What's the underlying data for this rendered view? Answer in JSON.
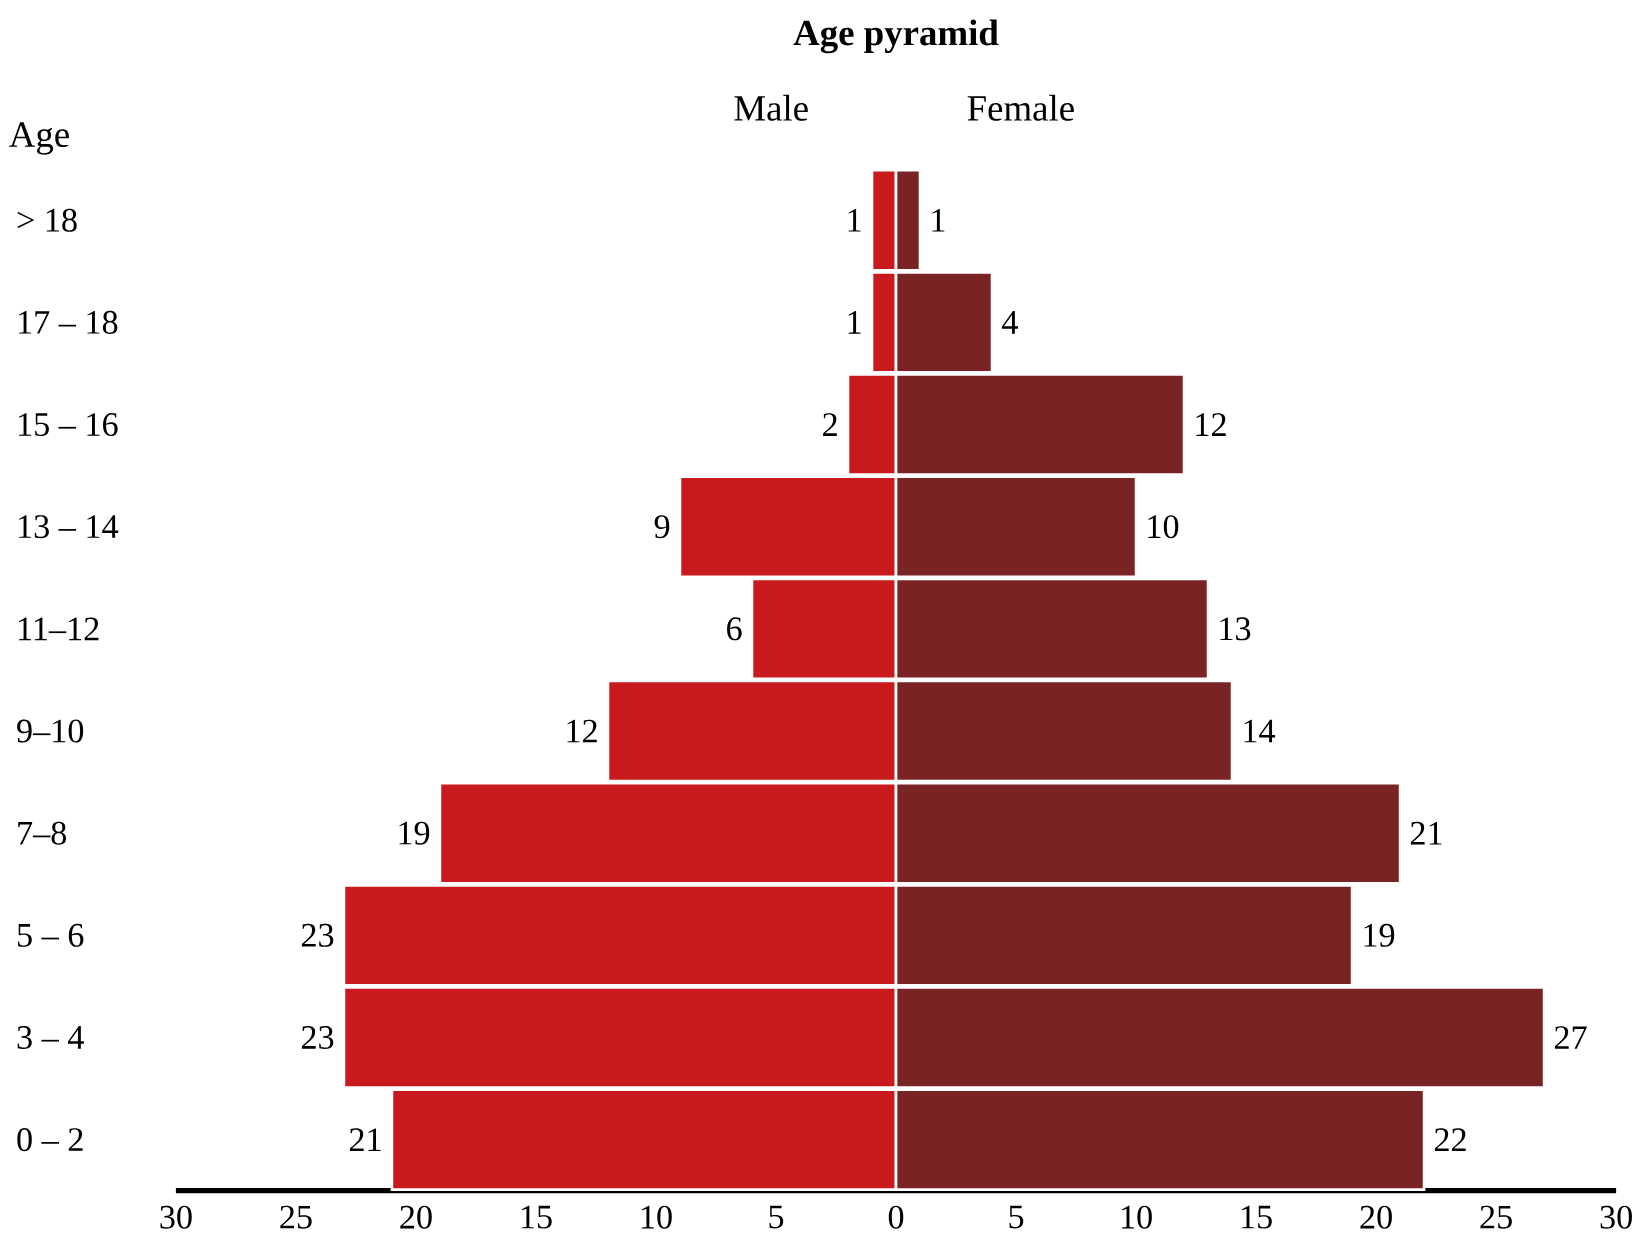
{
  "chart_data": [
    {
      "type": "bar",
      "orientation": "horizontal",
      "title": "Age pyramid",
      "ylabel": "Age",
      "categories": [
        "> 18",
        "17 – 18",
        "15 – 16",
        "13 – 14",
        "11–12",
        "9–10",
        "7–8",
        "5 – 6",
        "3 – 4",
        "0 – 2"
      ],
      "series": [
        {
          "name": "Male",
          "color": "#c8191c",
          "values": [
            1,
            1,
            2,
            9,
            6,
            12,
            19,
            23,
            23,
            21
          ]
        }
      ],
      "xlim": [
        30,
        0
      ],
      "xticks": [
        30,
        25,
        20,
        15,
        10,
        5
      ],
      "data_labels": true
    },
    {
      "type": "bar",
      "orientation": "horizontal",
      "tick_labels": "x",
      "categories": [
        null,
        null,
        null,
        null,
        null,
        null,
        null,
        null,
        null,
        null
      ],
      "series": [
        {
          "name": "Female",
          "color": "#7a2325",
          "values": [
            1,
            4,
            12,
            10,
            13,
            14,
            21,
            19,
            27,
            22
          ]
        }
      ],
      "xlim": [
        0,
        30
      ],
      "xticks": [
        0,
        5,
        10,
        15,
        20,
        25,
        30
      ],
      "data_labels": true
    }
  ]
}
